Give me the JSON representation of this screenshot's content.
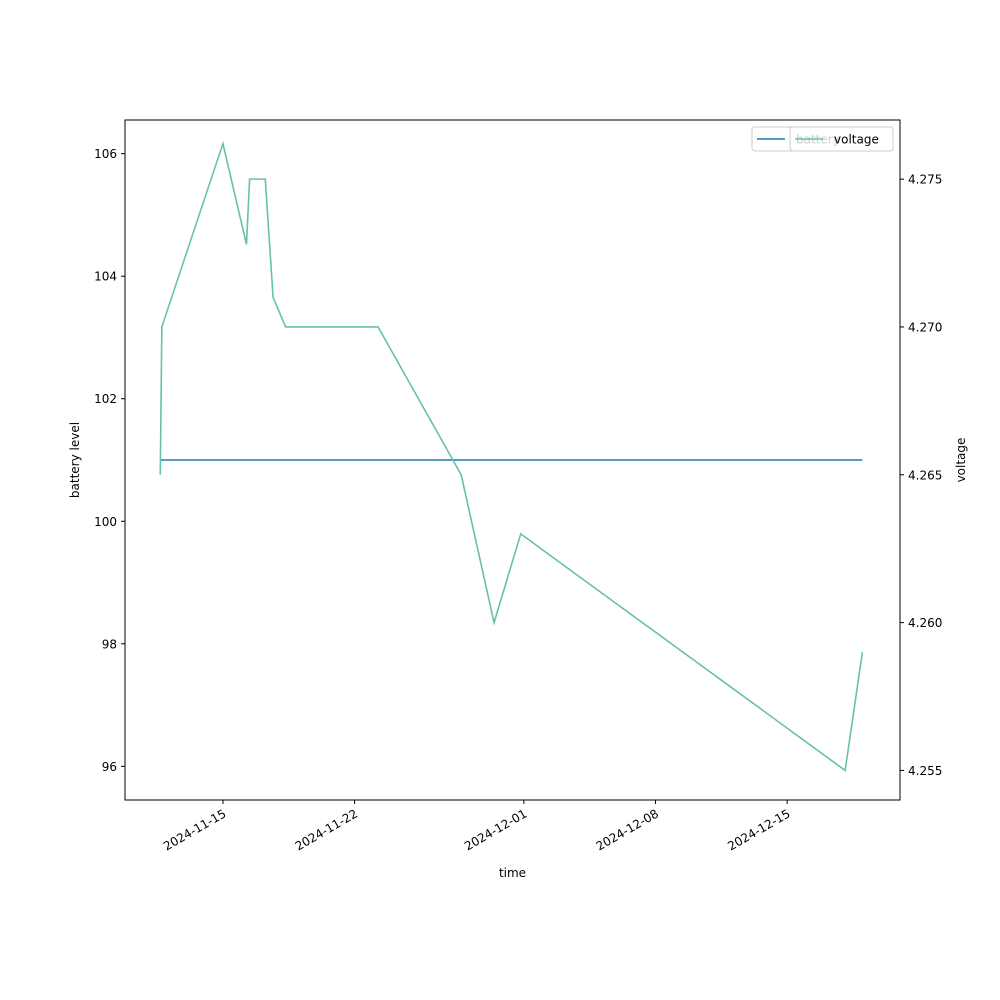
{
  "chart_data": {
    "type": "line",
    "xlabel": "time",
    "ylabel_left": "battery level",
    "ylabel_right": "voltage",
    "x_ticks": [
      "2024-11-15",
      "2024-11-22",
      "2024-12-01",
      "2024-12-08",
      "2024-12-15"
    ],
    "x_range": [
      "2024-11-09T19:00",
      "2024-12-21T00:00"
    ],
    "y_left_ticks": [
      96,
      98,
      100,
      102,
      104,
      106
    ],
    "y_left_range": [
      95.45,
      106.55
    ],
    "y_right_ticks": [
      4.255,
      4.26,
      4.265,
      4.27,
      4.275
    ],
    "y_right_range": [
      4.254,
      4.277
    ],
    "grid": false,
    "legend_position": "top-right",
    "series": [
      {
        "name": "battery",
        "axis": "left",
        "color": "#1f77b4",
        "points": [
          {
            "x": "2024-11-11T16:00",
            "y": 101
          },
          {
            "x": "2024-12-19T00:00",
            "y": 101
          }
        ]
      },
      {
        "name": "voltage",
        "axis": "right",
        "color": "#66c2a5",
        "points": [
          {
            "x": "2024-11-11T16:00",
            "y": 4.265
          },
          {
            "x": "2024-11-11T18:00",
            "y": 4.27
          },
          {
            "x": "2024-11-15T00:00",
            "y": 4.2762
          },
          {
            "x": "2024-11-16T06:00",
            "y": 4.2728
          },
          {
            "x": "2024-11-16T10:00",
            "y": 4.275
          },
          {
            "x": "2024-11-17T06:00",
            "y": 4.275
          },
          {
            "x": "2024-11-17T16:00",
            "y": 4.271
          },
          {
            "x": "2024-11-18T08:00",
            "y": 4.27
          },
          {
            "x": "2024-11-23T06:00",
            "y": 4.27
          },
          {
            "x": "2024-11-27T16:00",
            "y": 4.265
          },
          {
            "x": "2024-11-29T10:00",
            "y": 4.26
          },
          {
            "x": "2024-11-30T20:00",
            "y": 4.263
          },
          {
            "x": "2024-12-18T02:00",
            "y": 4.255
          },
          {
            "x": "2024-12-19T00:00",
            "y": 4.259
          }
        ]
      }
    ]
  }
}
